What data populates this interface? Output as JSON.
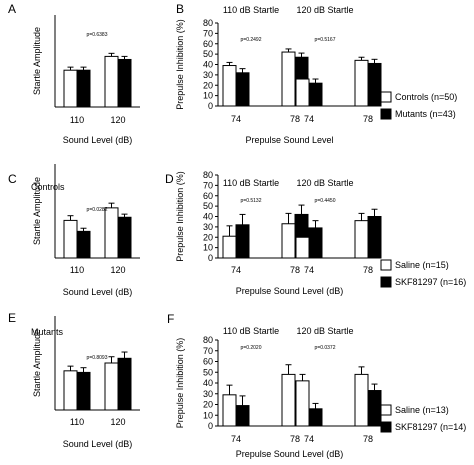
{
  "colors": {
    "control_fill": "#ffffff",
    "mutant_fill": "#000000",
    "axis": "#000000"
  },
  "chart_data": [
    {
      "id": "A",
      "type": "bar",
      "panel_label": "A",
      "title": "",
      "ylabel": "Startle Amplitude",
      "xlabel": "Sound Level (dB)",
      "categories": [
        "110",
        "120"
      ],
      "series": [
        {
          "name": "Controls (n=50)",
          "values": [
            1.2,
            1.65
          ],
          "errors": [
            0.1,
            0.1
          ]
        },
        {
          "name": "Mutants (n=43)",
          "values": [
            1.2,
            1.55
          ],
          "errors": [
            0.1,
            0.1
          ]
        }
      ],
      "pvalues": [
        "p=0.6383"
      ],
      "ylim": [
        0,
        3
      ],
      "grid": false
    },
    {
      "id": "B",
      "type": "bar",
      "panel_label": "B",
      "title": "",
      "ylabel": "Prepulse Inhibition (%)",
      "xlabel": "Prepulse Sound Level",
      "groups": [
        "110 dB Startle",
        "120 dB Startle"
      ],
      "categories": [
        "74",
        "78",
        "74",
        "78"
      ],
      "series": [
        {
          "name": "Controls (n=50)",
          "values": [
            39,
            52,
            26,
            44
          ],
          "errors": [
            3,
            3,
            3,
            3
          ]
        },
        {
          "name": "Mutants (n=43)",
          "values": [
            32,
            47,
            22,
            41
          ],
          "errors": [
            4,
            4,
            4,
            4
          ]
        }
      ],
      "pvalues": [
        "p=0.2492",
        "p=0.5167"
      ],
      "yticks": [
        0,
        10,
        20,
        30,
        40,
        50,
        60,
        70,
        80
      ],
      "ylim": [
        0,
        80
      ],
      "legend": "right",
      "grid": false
    },
    {
      "id": "C",
      "type": "bar",
      "panel_label": "C",
      "title": "Controls",
      "ylabel": "Startle Amplitude",
      "xlabel": "Sound Level (dB)",
      "categories": [
        "110",
        "120"
      ],
      "series": [
        {
          "name": "Saline (n=15)",
          "values": [
            1.2,
            1.6
          ],
          "errors": [
            0.15,
            0.15
          ]
        },
        {
          "name": "SKF81297 (n=16)",
          "values": [
            0.85,
            1.3
          ],
          "errors": [
            0.1,
            0.1
          ]
        }
      ],
      "pvalues": [
        "p=0.0282"
      ],
      "ylim": [
        0,
        3
      ],
      "grid": false
    },
    {
      "id": "D",
      "type": "bar",
      "panel_label": "D",
      "title": "",
      "ylabel": "Prepulse Inhibition (%)",
      "xlabel": "Prepulse Sound Level (dB)",
      "groups": [
        "110 dB Startle",
        "120 dB Startle"
      ],
      "categories": [
        "74",
        "78",
        "74",
        "78"
      ],
      "series": [
        {
          "name": "Saline (n=15)",
          "values": [
            21,
            33,
            20,
            36
          ],
          "errors": [
            10,
            10,
            6,
            7
          ]
        },
        {
          "name": "SKF81297 (n=16)",
          "values": [
            32,
            42,
            29,
            40
          ],
          "errors": [
            10,
            9,
            7,
            7
          ]
        }
      ],
      "pvalues": [
        "p=0.5132",
        "p=0.4450"
      ],
      "yticks": [
        0,
        10,
        20,
        30,
        40,
        50,
        60,
        70,
        80
      ],
      "ylim": [
        0,
        80
      ],
      "legend": "right",
      "grid": false
    },
    {
      "id": "E",
      "type": "bar",
      "panel_label": "E",
      "title": "Mutants",
      "ylabel": "Startle Amplitude",
      "xlabel": "Sound Level (dB)",
      "categories": [
        "110",
        "120"
      ],
      "series": [
        {
          "name": "Saline (n=13)",
          "values": [
            1.25,
            1.5
          ],
          "errors": [
            0.15,
            0.2
          ]
        },
        {
          "name": "SKF81297 (n=14)",
          "values": [
            1.2,
            1.65
          ],
          "errors": [
            0.15,
            0.2
          ]
        }
      ],
      "pvalues": [
        "p=0.8093"
      ],
      "ylim": [
        0,
        3
      ],
      "grid": false
    },
    {
      "id": "F",
      "type": "bar",
      "panel_label": "F",
      "title": "",
      "ylabel": "Prepulse Inhibition (%)",
      "xlabel": "Prepulse Sound Level (dB)",
      "groups": [
        "110 dB Startle",
        "120 dB Startle"
      ],
      "categories": [
        "74",
        "78",
        "74",
        "78"
      ],
      "series": [
        {
          "name": "Saline (n=13)",
          "values": [
            29,
            48,
            42,
            48
          ],
          "errors": [
            9,
            9,
            6,
            7
          ]
        },
        {
          "name": "SKF81297 (n=14)",
          "values": [
            19,
            30,
            16,
            33
          ],
          "errors": [
            9,
            7,
            5,
            6
          ]
        }
      ],
      "pvalues": [
        "p=0.2020",
        "p=0.0372"
      ],
      "yticks": [
        0,
        10,
        20,
        30,
        40,
        50,
        60,
        70,
        80
      ],
      "ylim": [
        0,
        80
      ],
      "legend": "right",
      "grid": false
    }
  ]
}
